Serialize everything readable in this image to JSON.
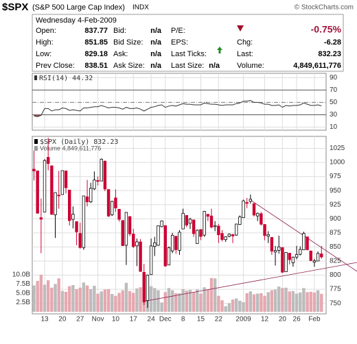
{
  "header": {
    "symbol": "$SPX",
    "name": "(S&P 500 Large Cap Index)",
    "exchange": "INDX",
    "source": "© StockCharts.com",
    "date": "Wednesday 4-Feb-2009",
    "change_pct": "-0.75%",
    "fields": [
      {
        "label": "Open:",
        "value": "837.77"
      },
      {
        "label": "High:",
        "value": "851.85"
      },
      {
        "label": "Low:",
        "value": "829.18"
      },
      {
        "label": "Prev Close:",
        "value": "838.51"
      },
      {
        "label": "Bid:",
        "value": "n/a"
      },
      {
        "label": "Bid Size:",
        "value": "n/a"
      },
      {
        "label": "Ask:",
        "value": "n/a"
      },
      {
        "label": "Ask Size:",
        "value": "n/a"
      },
      {
        "label": "P/E:"
      },
      {
        "label": "EPS:"
      },
      {
        "label": "Last Ticks:"
      },
      {
        "label": "Last Size:",
        "value": "n/a"
      },
      {
        "label": "Chg:",
        "value": "-6.28"
      },
      {
        "label": "Last:",
        "value": "832.23"
      },
      {
        "label": "Volume:",
        "value": "4,849,611,776"
      }
    ]
  },
  "chart_data": {
    "type": "candlestick",
    "price_label": "$SPX (Daily) 832.23",
    "categories": [
      null,
      null,
      null,
      "13",
      null,
      null,
      null,
      null,
      "20",
      null,
      null,
      null,
      null,
      "27",
      null,
      null,
      null,
      null,
      "Nov",
      null,
      null,
      null,
      null,
      "10",
      null,
      null,
      null,
      null,
      "17",
      null,
      null,
      null,
      null,
      "24",
      null,
      null,
      null,
      "Dec",
      null,
      null,
      null,
      null,
      "8",
      null,
      null,
      null,
      null,
      "15",
      null,
      null,
      null,
      null,
      "22",
      null,
      null,
      null,
      null,
      null,
      null,
      "2009",
      null,
      null,
      null,
      null,
      null,
      "12",
      null,
      null,
      null,
      null,
      "20",
      null,
      null,
      null,
      "26",
      null,
      null,
      null,
      null,
      "Feb",
      null,
      null
    ],
    "open": [
      988,
      985,
      902,
      912,
      1009,
      994,
      907,
      942,
      943,
      985,
      951,
      899,
      895,
      874,
      849,
      939,
      930,
      953,
      968,
      967,
      1002,
      952,
      907,
      937,
      917,
      897,
      853,
      904,
      873,
      852,
      859,
      805,
      755,
      801,
      851,
      853,
      886,
      888,
      818,
      843,
      869,
      844,
      882,
      906,
      892,
      898,
      856,
      881,
      871,
      908,
      905,
      886,
      887,
      874,
      863,
      869,
      872,
      871,
      890,
      902,
      929,
      931,
      927,
      905,
      909,
      890,
      869,
      867,
      841,
      844,
      849,
      806,
      839,
      822,
      832,
      837,
      845,
      868,
      843,
      823,
      825,
      837.77
    ],
    "high": [
      1021,
      985,
      936,
      1006,
      1044,
      994,
      947,
      985,
      985,
      985,
      951,
      922,
      895,
      893,
      941,
      969,
      964,
      984,
      975,
      1007,
      1004,
      952,
      932,
      952,
      917,
      897,
      912,
      904,
      882,
      865,
      864,
      820,
      801,
      865,
      868,
      888,
      897,
      888,
      851,
      875,
      869,
      880,
      918,
      906,
      902,
      898,
      881,
      881,
      914,
      908,
      918,
      896,
      891,
      880,
      869,
      874,
      873,
      891,
      906,
      934,
      937,
      943,
      927,
      911,
      912,
      890,
      878,
      867,
      852,
      870,
      849,
      841,
      839,
      833,
      852,
      851,
      877,
      868,
      843,
      829,
      842,
      851.85
    ],
    "low": [
      968,
      909,
      839,
      912,
      986,
      907,
      866,
      918,
      943,
      945,
      888,
      883,
      853,
      847,
      845,
      922,
      928,
      951,
      959,
      967,
      949,
      903,
      905,
      912,
      895,
      852,
      818,
      869,
      848,
      816,
      806,
      747,
      742,
      801,
      834,
      852,
      885,
      815,
      818,
      839,
      838,
      836,
      882,
      885,
      882,
      868,
      856,
      862,
      868,
      896,
      883,
      878,
      857,
      860,
      859,
      867,
      857,
      870,
      889,
      902,
      919,
      927,
      904,
      896,
      888,
      862,
      857,
      836,
      817,
      838,
      804,
      806,
      819,
      815,
      828,
      835,
      845,
      844,
      825,
      815,
      825,
      829.18
    ],
    "close": [
      984.94,
      909.92,
      899.22,
      1003.35,
      998.01,
      907.84,
      946.43,
      940.55,
      985.4,
      955.05,
      896.78,
      908.11,
      876.77,
      848.92,
      940.51,
      930.09,
      954.09,
      968.75,
      966.3,
      1005.75,
      952.77,
      904.88,
      930.99,
      919.21,
      898.95,
      852.3,
      911.29,
      873.29,
      850.75,
      859.12,
      806.58,
      752.44,
      800.03,
      851.81,
      857.39,
      887.68,
      896.24,
      816.21,
      848.81,
      870.74,
      845.22,
      876.07,
      909.7,
      888.67,
      899.24,
      873.59,
      879.73,
      868.57,
      913.18,
      904.42,
      885.28,
      887.88,
      871.63,
      863.16,
      868.15,
      872.8,
      869.42,
      890.64,
      903.25,
      931.8,
      927.45,
      934.7,
      906.65,
      909.73,
      890.35,
      870.26,
      871.79,
      842.62,
      843.74,
      850.12,
      805.22,
      840.24,
      827.5,
      831.95,
      836.57,
      845.71,
      874.09,
      845.14,
      825.88,
      825.44,
      838.51,
      832.23
    ],
    "ylim": [
      735,
      1045
    ],
    "yticks": [
      750,
      775,
      800,
      825,
      850,
      875,
      900,
      925,
      950,
      975,
      1000,
      1025
    ],
    "up_color": "#000000",
    "down_color": "#cc0033",
    "volume": {
      "label": "Volume 4,849,611,776",
      "down_color": "#e6a8b0",
      "up_color": "#bcbcbc",
      "values": [
        7.1,
        8.3,
        10.0,
        7.3,
        8.5,
        6.5,
        7.5,
        9.0,
        5.6,
        5.4,
        6.9,
        7.2,
        6.1,
        6.5,
        7.9,
        7.1,
        6.1,
        7.0,
        4.9,
        5.5,
        6.0,
        6.1,
        4.8,
        4.3,
        5.1,
        5.8,
        7.8,
        5.6,
        5.1,
        6.3,
        6.6,
        9.1,
        10.0,
        6.9,
        6.4,
        5.8,
        2.5,
        5.3,
        6.4,
        5.8,
        5.0,
        5.0,
        6.1,
        5.7,
        5.9,
        5.3,
        6.0,
        4.9,
        6.6,
        6.0,
        9.1,
        9.0,
        4.3,
        3.1,
        1.5,
        2.3,
        3.3,
        3.6,
        3.0,
        2.6,
        5.0,
        5.5,
        4.7,
        4.9,
        5.0,
        4.3,
        5.3,
        5.8,
        6.0,
        6.8,
        6.4,
        6.5,
        5.5,
        5.6,
        4.9,
        5.2,
        6.4,
        5.3,
        5.4,
        5.2,
        5.8,
        4.85
      ],
      "ylim": [
        0,
        12
      ],
      "yticks": [
        {
          "value": 2.5,
          "label": "2.5B"
        },
        {
          "value": 5,
          "label": "5.0B"
        },
        {
          "value": 7.5,
          "label": "7.5B"
        },
        {
          "value": 10,
          "label": "10.0B"
        }
      ]
    },
    "rsi": {
      "label": "RSI(14) 44.32",
      "color": "#333333",
      "values": [
        28,
        27,
        29,
        40,
        40,
        36,
        38,
        38,
        41,
        40,
        37,
        38,
        37,
        36,
        41,
        41,
        42,
        43,
        43,
        45,
        43,
        41,
        42,
        42,
        41,
        39,
        42,
        40,
        40,
        41,
        39,
        36,
        39,
        42,
        43,
        45,
        46,
        42,
        44,
        45,
        44,
        46,
        48,
        47,
        47,
        46,
        46,
        46,
        49,
        48,
        47,
        47,
        46,
        45,
        46,
        46,
        46,
        48,
        49,
        52,
        52,
        53,
        50,
        50,
        49,
        47,
        47,
        45,
        45,
        46,
        42,
        45,
        44,
        45,
        45,
        46,
        49,
        47,
        45,
        45,
        46,
        44.32
      ],
      "ylim": [
        5,
        97
      ],
      "yticks": [
        10,
        30,
        50,
        70,
        90
      ]
    }
  }
}
